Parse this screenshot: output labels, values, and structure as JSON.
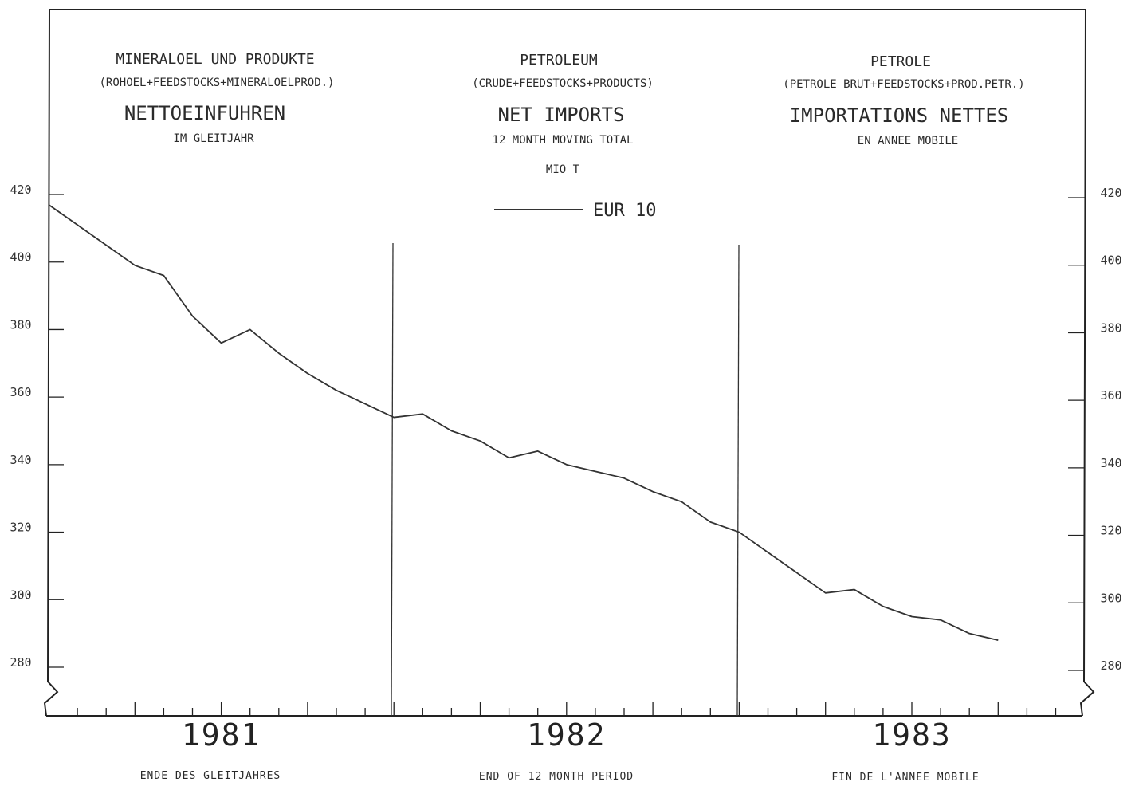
{
  "headings": {
    "german": {
      "product": "MINERALOEL UND PRODUKTE",
      "composition": "(ROHOEL+FEEDSTOCKS+MINERALOELPROD.)",
      "measure": "NETTOEINFUHREN",
      "period": "IM GLEITJAHR"
    },
    "english": {
      "product": "PETROLEUM",
      "composition": "(CRUDE+FEEDSTOCKS+PRODUCTS)",
      "measure": "NET IMPORTS",
      "period": "12 MONTH MOVING TOTAL",
      "unit": "MIO T"
    },
    "french": {
      "product": "PETROLE",
      "composition": "(PETROLE BRUT+FEEDSTOCKS+PROD.PETR.)",
      "measure": "IMPORTATIONS NETTES",
      "period": "EN ANNEE MOBILE"
    }
  },
  "footer": {
    "german": "ENDE DES GLEITJAHRES",
    "english": "END OF 12 MONTH PERIOD",
    "french": "FIN DE L'ANNEE MOBILE"
  },
  "chart_data": {
    "type": "line",
    "xlabel": "",
    "ylabel": "MIO T",
    "years": [
      "1981",
      "1982",
      "1983"
    ],
    "x": [
      "1981-01",
      "1981-02",
      "1981-03",
      "1981-04",
      "1981-05",
      "1981-06",
      "1981-07",
      "1981-08",
      "1981-09",
      "1981-10",
      "1981-11",
      "1981-12",
      "1982-01",
      "1982-02",
      "1982-03",
      "1982-04",
      "1982-05",
      "1982-06",
      "1982-07",
      "1982-08",
      "1982-09",
      "1982-10",
      "1982-11",
      "1982-12",
      "1983-01",
      "1983-02",
      "1983-03",
      "1983-04",
      "1983-05",
      "1983-06",
      "1983-07",
      "1983-08",
      "1983-09",
      "1983-10",
      "1983-11",
      "1983-12"
    ],
    "series": [
      {
        "name": "EUR 10",
        "values": [
          417,
          411,
          405,
          399,
          396,
          384,
          376,
          380,
          373,
          367,
          362,
          358,
          354,
          355,
          350,
          347,
          342,
          344,
          340,
          338,
          336,
          332,
          329,
          323,
          320,
          314,
          308,
          302,
          303,
          298,
          295,
          294,
          290,
          288,
          null,
          null
        ]
      }
    ],
    "yticks": [
      280,
      300,
      320,
      340,
      360,
      380,
      400,
      420
    ],
    "ylim": [
      280,
      420
    ],
    "grid": false,
    "legend_position": "top-center",
    "colors": {
      "line": "#333333",
      "axes": "#222222"
    }
  }
}
